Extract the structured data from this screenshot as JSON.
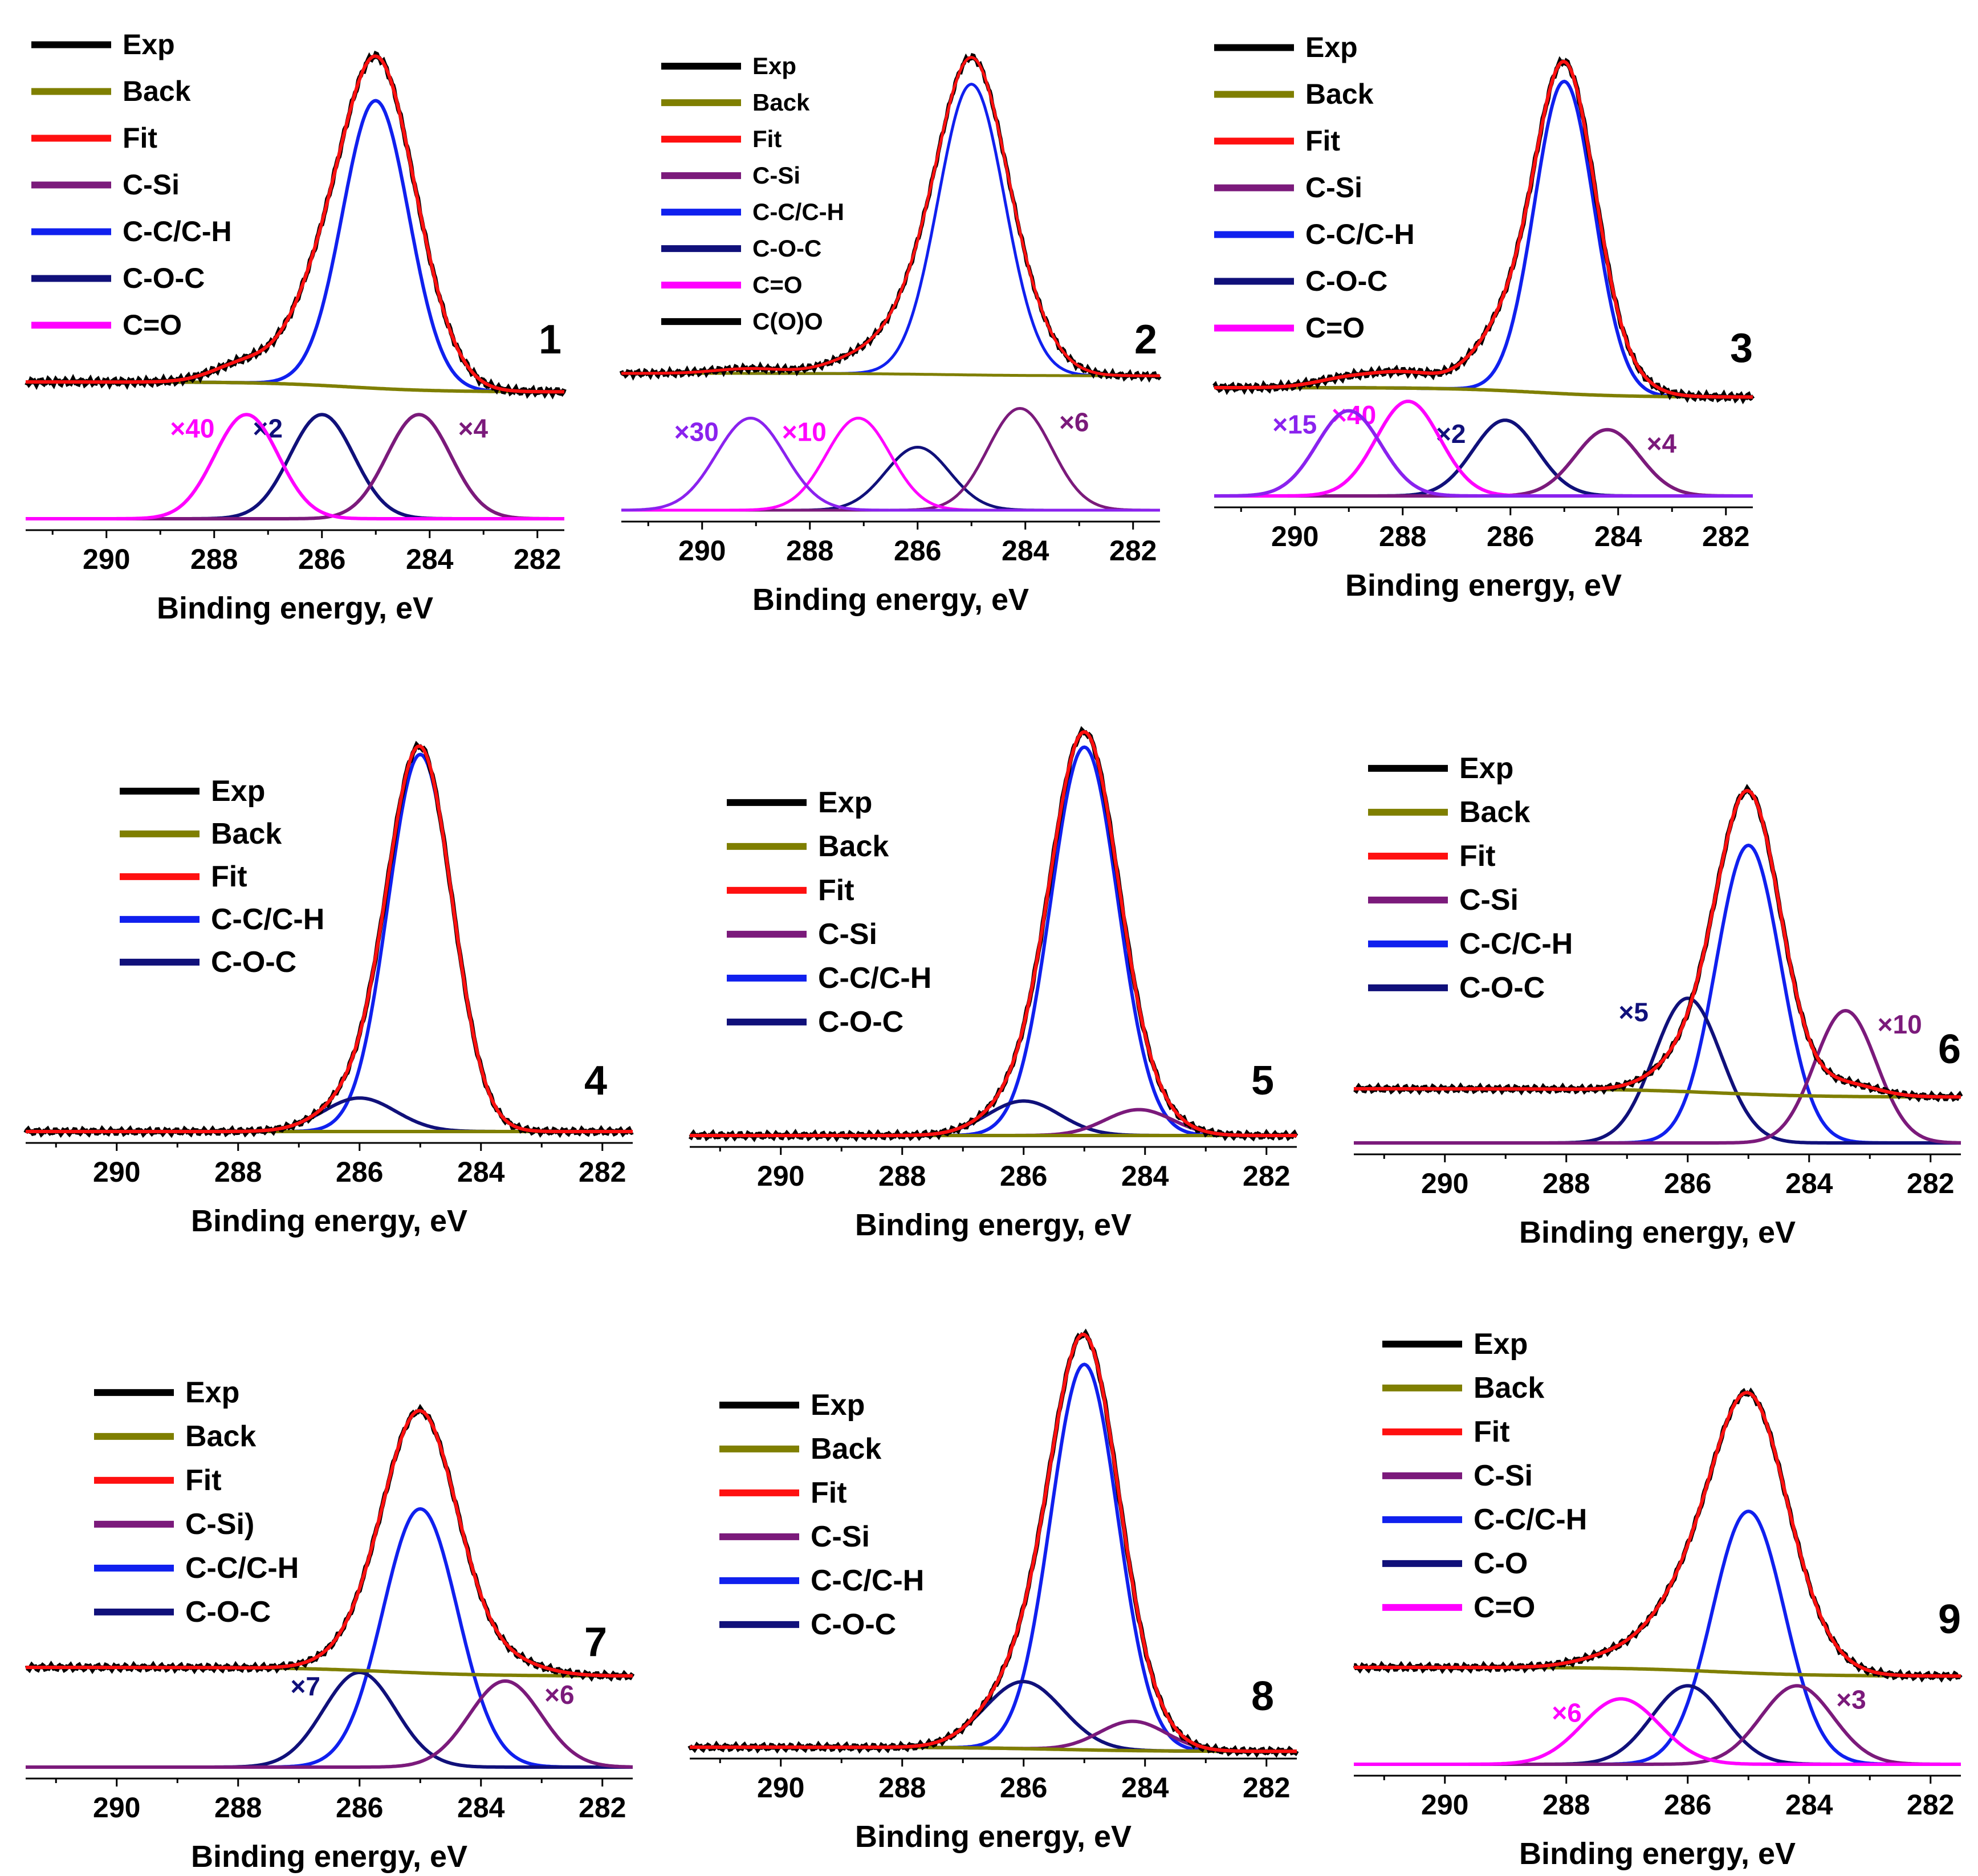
{
  "chart_data": {
    "type": "line",
    "xlabel": "Binding energy, eV",
    "xlim": [
      291.5,
      281.5
    ],
    "xticks": [
      290,
      288,
      286,
      284,
      282
    ],
    "colors": {
      "Exp": "#000000",
      "Back": "#7f7f00",
      "Fit": "#ff1010",
      "C-Si": "#7b1a7b",
      "C-C/C-H": "#1020ee",
      "C-O-C": "#10107a",
      "C-O": "#10107a",
      "C=O": "#ff00ff",
      "C(O)O": "#8a22ee"
    },
    "panels": [
      {
        "id": "1",
        "legend": [
          "Exp",
          "Back",
          "Fit",
          "C-Si",
          "C-C/C-H",
          "C-O-C",
          "C=O"
        ],
        "background": [
          0.035,
          0.015
        ],
        "fit_peaks": [
          {
            "name": "C-C/C-H",
            "center": 285.0,
            "fwhm": 1.45,
            "height": 0.58
          },
          {
            "name": "C-O-C",
            "center": 286.0,
            "fwhm": 1.4,
            "height": 0.17
          },
          {
            "name": "C-Si",
            "center": 284.2,
            "fwhm": 1.4,
            "height": 0.12
          },
          {
            "name": "C=O",
            "center": 287.4,
            "fwhm": 1.4,
            "height": 0.04
          }
        ],
        "components": [
          {
            "name": "C-C/C-H",
            "center": 285.0,
            "fwhm": 1.45,
            "height": 0.58,
            "scale": "",
            "base": "fit"
          },
          {
            "name": "C-O-C",
            "center": 286.0,
            "fwhm": 1.4,
            "height": 0.21,
            "scale": "×2",
            "base": "comp"
          },
          {
            "name": "C-Si",
            "center": 284.2,
            "fwhm": 1.4,
            "height": 0.21,
            "scale": "×4",
            "base": "comp"
          },
          {
            "name": "C=O",
            "center": 287.4,
            "fwhm": 1.4,
            "height": 0.21,
            "scale": "×40",
            "base": "comp"
          }
        ]
      },
      {
        "id": "2",
        "legend": [
          "Exp",
          "Back",
          "Fit",
          "C-Si",
          "C-C/C-H",
          "C-O-C",
          "C=O",
          "C(O)O"
        ],
        "background": [
          0.025,
          0.02
        ],
        "fit_peaks": [
          {
            "name": "C-C/C-H",
            "center": 285.0,
            "fwhm": 1.45,
            "height": 0.6
          },
          {
            "name": "C-O-C",
            "center": 286.0,
            "fwhm": 1.4,
            "height": 0.11
          },
          {
            "name": "C-Si",
            "center": 284.1,
            "fwhm": 1.4,
            "height": 0.09
          },
          {
            "name": "C=O",
            "center": 287.1,
            "fwhm": 1.4,
            "height": 0.03
          },
          {
            "name": "C(O)O",
            "center": 289.1,
            "fwhm": 1.5,
            "height": 0.01
          }
        ],
        "components": [
          {
            "name": "C-C/C-H",
            "center": 285.0,
            "fwhm": 1.45,
            "height": 0.6,
            "scale": "",
            "base": "fit"
          },
          {
            "name": "C-O-C",
            "center": 286.0,
            "fwhm": 1.4,
            "height": 0.13,
            "scale": "",
            "base": "comp"
          },
          {
            "name": "C-Si",
            "center": 284.1,
            "fwhm": 1.4,
            "height": 0.21,
            "scale": "×6",
            "base": "comp"
          },
          {
            "name": "C=O",
            "center": 287.1,
            "fwhm": 1.4,
            "height": 0.19,
            "scale": "×10",
            "base": "comp"
          },
          {
            "name": "C(O)O",
            "center": 289.1,
            "fwhm": 1.5,
            "height": 0.19,
            "scale": "×30",
            "base": "comp"
          }
        ]
      },
      {
        "id": "3",
        "legend": [
          "Exp",
          "Back",
          "Fit",
          "C-Si",
          "C-C/C-H",
          "C-O-C",
          "C=O"
        ],
        "background": [
          0.03,
          0.01
        ],
        "fit_peaks": [
          {
            "name": "C-C/C-H",
            "center": 285.0,
            "fwhm": 1.3,
            "height": 0.66
          },
          {
            "name": "C-O-C",
            "center": 286.1,
            "fwhm": 1.4,
            "height": 0.12
          },
          {
            "name": "C-Si",
            "center": 284.2,
            "fwhm": 1.4,
            "height": 0.05
          },
          {
            "name": "C=O",
            "center": 287.9,
            "fwhm": 1.4,
            "height": 0.03
          },
          {
            "name": "C(O)O",
            "center": 289.0,
            "fwhm": 1.4,
            "height": 0.02
          }
        ],
        "components": [
          {
            "name": "C-C/C-H",
            "center": 285.0,
            "fwhm": 1.3,
            "height": 0.66,
            "scale": "",
            "base": "fit"
          },
          {
            "name": "C-O-C",
            "center": 286.1,
            "fwhm": 1.4,
            "height": 0.16,
            "scale": "×2",
            "base": "comp"
          },
          {
            "name": "C-Si",
            "center": 284.2,
            "fwhm": 1.4,
            "height": 0.14,
            "scale": "×4",
            "base": "comp"
          },
          {
            "name": "C=O",
            "center": 287.9,
            "fwhm": 1.4,
            "height": 0.2,
            "scale": "×40",
            "base": "comp"
          },
          {
            "name": "C(O)O",
            "center": 289.0,
            "fwhm": 1.4,
            "height": 0.18,
            "scale": "×15",
            "base": "comp"
          }
        ]
      },
      {
        "id": "4",
        "legend": [
          "Exp",
          "Back",
          "Fit",
          "C-C/C-H",
          "C-O-C"
        ],
        "background": [
          0.0,
          0.0
        ],
        "fit_peaks": [
          {
            "name": "C-C/C-H",
            "center": 285.0,
            "fwhm": 1.25,
            "height": 0.9
          },
          {
            "name": "C-O-C",
            "center": 286.0,
            "fwhm": 1.4,
            "height": 0.08
          }
        ],
        "components": [
          {
            "name": "C-C/C-H",
            "center": 285.0,
            "fwhm": 1.25,
            "height": 0.9,
            "scale": "",
            "base": "fit"
          },
          {
            "name": "C-O-C",
            "center": 286.0,
            "fwhm": 1.4,
            "height": 0.08,
            "scale": "",
            "base": "fit"
          }
        ]
      },
      {
        "id": "5",
        "legend": [
          "Exp",
          "Back",
          "Fit",
          "C-Si",
          "C-C/C-H",
          "C-O-C"
        ],
        "background": [
          0.0,
          0.0
        ],
        "fit_peaks": [
          {
            "name": "C-C/C-H",
            "center": 285.0,
            "fwhm": 1.3,
            "height": 0.9
          },
          {
            "name": "C-O-C",
            "center": 286.0,
            "fwhm": 1.4,
            "height": 0.08
          },
          {
            "name": "C-Si",
            "center": 284.1,
            "fwhm": 1.3,
            "height": 0.06
          }
        ],
        "components": [
          {
            "name": "C-C/C-H",
            "center": 285.0,
            "fwhm": 1.3,
            "height": 0.9,
            "scale": "",
            "base": "fit"
          },
          {
            "name": "C-O-C",
            "center": 286.0,
            "fwhm": 1.4,
            "height": 0.08,
            "scale": "",
            "base": "fit"
          },
          {
            "name": "C-Si",
            "center": 284.1,
            "fwhm": 1.3,
            "height": 0.06,
            "scale": "",
            "base": "fit"
          }
        ]
      },
      {
        "id": "6",
        "legend": [
          "Exp",
          "Back",
          "Fit",
          "C-Si",
          "C-C/C-H",
          "C-O-C"
        ],
        "background": [
          0.1,
          0.08
        ],
        "fit_peaks": [
          {
            "name": "C-C/C-H",
            "center": 285.0,
            "fwhm": 1.25,
            "height": 0.72
          },
          {
            "name": "C-O-C",
            "center": 286.0,
            "fwhm": 1.3,
            "height": 0.07
          },
          {
            "name": "C-Si",
            "center": 283.4,
            "fwhm": 1.2,
            "height": 0.03
          }
        ],
        "components": [
          {
            "name": "C-C/C-H",
            "center": 285.0,
            "fwhm": 1.25,
            "height": 0.72,
            "scale": "",
            "base": "comp"
          },
          {
            "name": "C-O-C",
            "center": 286.0,
            "fwhm": 1.3,
            "height": 0.35,
            "scale": "×5",
            "base": "comp"
          },
          {
            "name": "C-Si",
            "center": 283.4,
            "fwhm": 1.2,
            "height": 0.32,
            "scale": "×10",
            "base": "comp"
          }
        ]
      },
      {
        "id": "7",
        "legend": [
          "Exp",
          "Back",
          "Fit",
          "C-Si)",
          "C-C/C-H",
          "C-O-C"
        ],
        "background": [
          0.085,
          0.065
        ],
        "fit_peaks": [
          {
            "name": "C-C/C-H",
            "center": 285.0,
            "fwhm": 1.45,
            "height": 0.6
          },
          {
            "name": "C-O-C",
            "center": 286.0,
            "fwhm": 1.4,
            "height": 0.03
          },
          {
            "name": "C-Si",
            "center": 283.6,
            "fwhm": 1.4,
            "height": 0.03
          }
        ],
        "components": [
          {
            "name": "C-C/C-H",
            "center": 285.0,
            "fwhm": 1.45,
            "height": 0.6,
            "scale": "",
            "base": "comp"
          },
          {
            "name": "C-O-C",
            "center": 286.0,
            "fwhm": 1.4,
            "height": 0.22,
            "scale": "×7",
            "base": "comp"
          },
          {
            "name": "C-Si",
            "center": 283.6,
            "fwhm": 1.4,
            "height": 0.2,
            "scale": "×6",
            "base": "comp"
          }
        ]
      },
      {
        "id": "8",
        "legend": [
          "Exp",
          "Back",
          "Fit",
          "C-Si",
          "C-C/C-H",
          "C-O-C"
        ],
        "background": [
          0.01,
          0.0
        ],
        "fit_peaks": [
          {
            "name": "C-C/C-H",
            "center": 285.0,
            "fwhm": 1.3,
            "height": 0.92
          },
          {
            "name": "C-O-C",
            "center": 286.0,
            "fwhm": 1.5,
            "height": 0.16
          },
          {
            "name": "C-Si",
            "center": 284.2,
            "fwhm": 1.3,
            "height": 0.07
          }
        ],
        "components": [
          {
            "name": "C-C/C-H",
            "center": 285.0,
            "fwhm": 1.3,
            "height": 0.92,
            "scale": "",
            "base": "fit"
          },
          {
            "name": "C-O-C",
            "center": 286.0,
            "fwhm": 1.5,
            "height": 0.16,
            "scale": "",
            "base": "fit"
          },
          {
            "name": "C-Si",
            "center": 284.2,
            "fwhm": 1.3,
            "height": 0.07,
            "scale": "",
            "base": "fit"
          }
        ]
      },
      {
        "id": "9",
        "legend": [
          "Exp",
          "Back",
          "Fit",
          "C-Si",
          "C-C/C-H",
          "C-O",
          "C=O"
        ],
        "background": [
          0.12,
          0.1
        ],
        "fit_peaks": [
          {
            "name": "C-C/C-H",
            "center": 285.0,
            "fwhm": 1.4,
            "height": 0.58
          },
          {
            "name": "C-O",
            "center": 286.0,
            "fwhm": 1.4,
            "height": 0.14
          },
          {
            "name": "C-Si",
            "center": 284.2,
            "fwhm": 1.4,
            "height": 0.07
          },
          {
            "name": "C=O",
            "center": 287.1,
            "fwhm": 1.5,
            "height": 0.03
          }
        ],
        "components": [
          {
            "name": "C-C/C-H",
            "center": 285.0,
            "fwhm": 1.4,
            "height": 0.58,
            "scale": "",
            "base": "comp"
          },
          {
            "name": "C-O",
            "center": 286.0,
            "fwhm": 1.4,
            "height": 0.18,
            "scale": "",
            "base": "comp"
          },
          {
            "name": "C-Si",
            "center": 284.2,
            "fwhm": 1.4,
            "height": 0.18,
            "scale": "×3",
            "base": "comp"
          },
          {
            "name": "C=O",
            "center": 287.1,
            "fwhm": 1.5,
            "height": 0.15,
            "scale": "×6",
            "base": "comp"
          }
        ]
      }
    ]
  }
}
